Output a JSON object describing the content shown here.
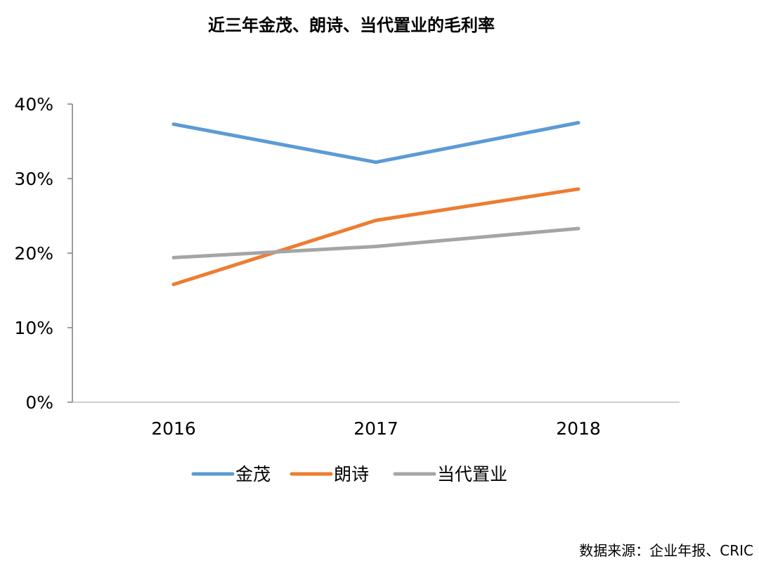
{
  "chart_data": {
    "type": "line",
    "title": "近三年金茂、朗诗、当代置业的毛利率",
    "categories": [
      "2016",
      "2017",
      "2018"
    ],
    "ylim": [
      0,
      40
    ],
    "yticks": [
      0,
      10,
      20,
      30,
      40
    ],
    "ytick_labels": [
      "0%",
      "10%",
      "20%",
      "30%",
      "40%"
    ],
    "y_unit": "%",
    "grid": false,
    "legend_position": "bottom",
    "series": [
      {
        "name": "金茂",
        "values": [
          37.3,
          32.2,
          37.5
        ],
        "color": "#5B9BD5"
      },
      {
        "name": "朗诗",
        "values": [
          15.8,
          24.4,
          28.6
        ],
        "color": "#ED7D31"
      },
      {
        "name": "当代置业",
        "values": [
          19.4,
          20.9,
          23.3
        ],
        "color": "#A5A5A5"
      }
    ],
    "source": "数据来源：企业年报、CRIC"
  }
}
